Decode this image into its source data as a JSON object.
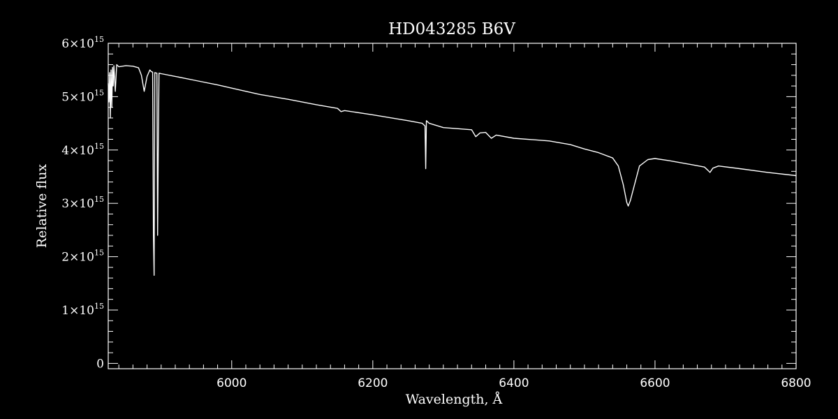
{
  "chart_data": {
    "type": "line",
    "title": "HD043285   B6V",
    "xlabel": "Wavelength, Å",
    "ylabel": "Relative flux",
    "xlim": [
      5825,
      6800
    ],
    "ylim": [
      -0.1,
      6.0
    ],
    "y_multiplier": "×10^15",
    "x_ticks": [
      {
        "value": 6000,
        "label": "6000"
      },
      {
        "value": 6200,
        "label": "6200"
      },
      {
        "value": 6400,
        "label": "6400"
      },
      {
        "value": 6600,
        "label": "6600"
      },
      {
        "value": 6800,
        "label": "6800"
      }
    ],
    "y_ticks": [
      {
        "value": 0,
        "label": "0"
      },
      {
        "value": 1,
        "mantissa": "1",
        "base": "×10",
        "exp": "15"
      },
      {
        "value": 2,
        "mantissa": "2",
        "base": "×10",
        "exp": "15"
      },
      {
        "value": 3,
        "mantissa": "3",
        "base": "×10",
        "exp": "15"
      },
      {
        "value": 4,
        "mantissa": "4",
        "base": "×10",
        "exp": "15"
      },
      {
        "value": 5,
        "mantissa": "5",
        "base": "×10",
        "exp": "15"
      },
      {
        "value": 6,
        "mantissa": "6",
        "base": "×10",
        "exp": "15"
      }
    ],
    "series": [
      {
        "color": "#ffffff",
        "points": [
          [
            5825,
            5.25
          ],
          [
            5826,
            4.9
          ],
          [
            5827,
            5.45
          ],
          [
            5828,
            4.6
          ],
          [
            5829,
            5.5
          ],
          [
            5830,
            4.8
          ],
          [
            5831,
            5.55
          ],
          [
            5832,
            5.2
          ],
          [
            5833,
            5.58
          ],
          [
            5835,
            5.1
          ],
          [
            5837,
            5.6
          ],
          [
            5840,
            5.56
          ],
          [
            5850,
            5.58
          ],
          [
            5860,
            5.57
          ],
          [
            5868,
            5.54
          ],
          [
            5872,
            5.4
          ],
          [
            5876,
            5.1
          ],
          [
            5880,
            5.38
          ],
          [
            5884,
            5.5
          ],
          [
            5886,
            5.47
          ],
          [
            5888,
            5.46
          ],
          [
            5889,
            2.4
          ],
          [
            5890,
            1.65
          ],
          [
            5891,
            5.45
          ],
          [
            5894,
            5.44
          ],
          [
            5895,
            2.4
          ],
          [
            5896,
            4.1
          ],
          [
            5897,
            5.44
          ],
          [
            5900,
            5.43
          ],
          [
            5920,
            5.38
          ],
          [
            5950,
            5.3
          ],
          [
            5980,
            5.22
          ],
          [
            6000,
            5.16
          ],
          [
            6040,
            5.04
          ],
          [
            6080,
            4.95
          ],
          [
            6120,
            4.85
          ],
          [
            6150,
            4.78
          ],
          [
            6155,
            4.72
          ],
          [
            6160,
            4.74
          ],
          [
            6200,
            4.66
          ],
          [
            6250,
            4.55
          ],
          [
            6270,
            4.5
          ],
          [
            6274,
            4.45
          ],
          [
            6275,
            3.65
          ],
          [
            6276,
            4.55
          ],
          [
            6280,
            4.5
          ],
          [
            6300,
            4.42
          ],
          [
            6340,
            4.38
          ],
          [
            6346,
            4.25
          ],
          [
            6352,
            4.32
          ],
          [
            6360,
            4.33
          ],
          [
            6368,
            4.22
          ],
          [
            6375,
            4.28
          ],
          [
            6400,
            4.22
          ],
          [
            6450,
            4.17
          ],
          [
            6480,
            4.1
          ],
          [
            6500,
            4.02
          ],
          [
            6520,
            3.95
          ],
          [
            6540,
            3.85
          ],
          [
            6548,
            3.7
          ],
          [
            6555,
            3.35
          ],
          [
            6560,
            3.02
          ],
          [
            6562,
            2.95
          ],
          [
            6565,
            3.05
          ],
          [
            6570,
            3.3
          ],
          [
            6578,
            3.7
          ],
          [
            6590,
            3.82
          ],
          [
            6600,
            3.84
          ],
          [
            6620,
            3.8
          ],
          [
            6650,
            3.73
          ],
          [
            6670,
            3.68
          ],
          [
            6675,
            3.62
          ],
          [
            6678,
            3.58
          ],
          [
            6682,
            3.66
          ],
          [
            6690,
            3.7
          ],
          [
            6720,
            3.65
          ],
          [
            6760,
            3.58
          ],
          [
            6800,
            3.52
          ]
        ]
      }
    ]
  }
}
